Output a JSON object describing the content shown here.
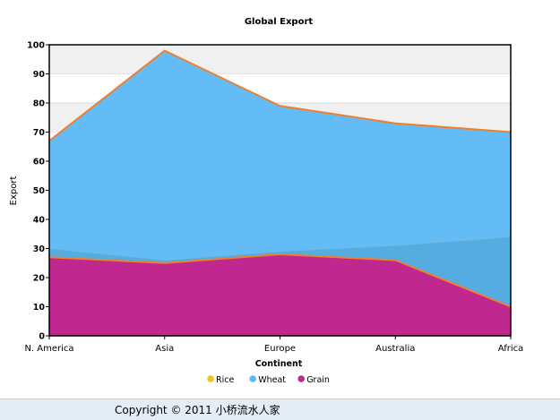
{
  "chart_data": {
    "type": "area",
    "title": "Global Export",
    "xlabel": "Continent",
    "ylabel": "Export",
    "categories": [
      "N. America",
      "Asia",
      "Europe",
      "Australia",
      "Africa"
    ],
    "ylim": [
      0,
      100
    ],
    "yticks": [
      "0",
      "10",
      "20",
      "30",
      "40",
      "50",
      "60",
      "70",
      "80",
      "90",
      "100"
    ],
    "grid": "horizontal bands",
    "legend_position": "bottom-center",
    "series": [
      {
        "name": "Rice",
        "color": "#f2c21a",
        "values": [
          30,
          26,
          29,
          31,
          34
        ]
      },
      {
        "name": "Wheat",
        "color": "#5bb8f5",
        "values": [
          67,
          98,
          79,
          73,
          70
        ]
      },
      {
        "name": "Grain",
        "color": "#c0288f",
        "values": [
          27,
          25,
          28,
          26,
          10
        ]
      }
    ],
    "line_color": "#f07f2c"
  },
  "footer": {
    "copyright": "Copyright © 2011 小桥流水人家"
  }
}
